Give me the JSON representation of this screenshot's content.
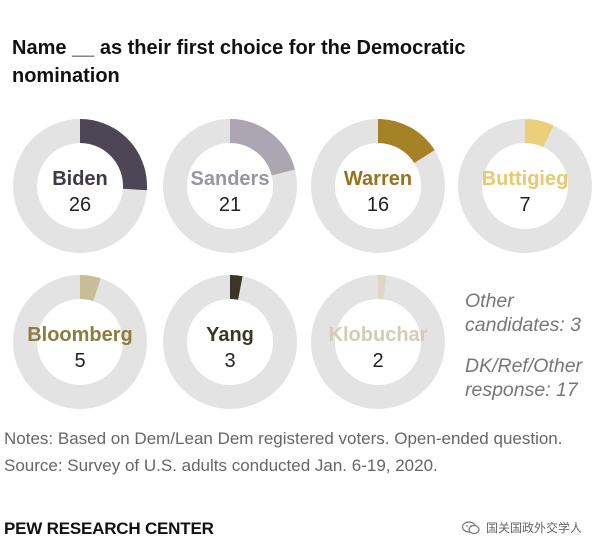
{
  "title": "Name __ as their first choice for the Democratic nomination",
  "chart_data": {
    "type": "donut",
    "title": "Name __ as their first choice for the Democratic nomination",
    "max": 100,
    "track_color": "#e3e3e3",
    "series": [
      {
        "name": "Biden",
        "value": 26,
        "color": "#4c4656",
        "label_color": "#3f3a46"
      },
      {
        "name": "Sanders",
        "value": 21,
        "color": "#aba6b2",
        "label_color": "#9a94a2"
      },
      {
        "name": "Warren",
        "value": 16,
        "color": "#a68226",
        "label_color": "#977320"
      },
      {
        "name": "Buttigieg",
        "value": 7,
        "color": "#eccf7a",
        "label_color": "#e7c96f"
      },
      {
        "name": "Bloomberg",
        "value": 5,
        "color": "#c9bd98",
        "label_color": "#8c7c3e"
      },
      {
        "name": "Yang",
        "value": 3,
        "color": "#3b3726",
        "label_color": "#3b3726"
      },
      {
        "name": "Klobuchar",
        "value": 2,
        "color": "#ddd7c4",
        "label_color": "#d4cdb6"
      }
    ],
    "other_notes": [
      {
        "lines": [
          "Other",
          "candidates: 3"
        ]
      },
      {
        "lines": [
          "DK/Ref/Other",
          "response: 17"
        ]
      }
    ]
  },
  "notes": [
    "Notes: Based on Dem/Lean Dem registered voters. Open-ended question.",
    "Source: Survey of U.S. adults conducted Jan. 6-19, 2020."
  ],
  "brand": "PEW RESEARCH CENTER",
  "watermark": "国关国政外交学人",
  "watermark_icon": "wechat-icon"
}
